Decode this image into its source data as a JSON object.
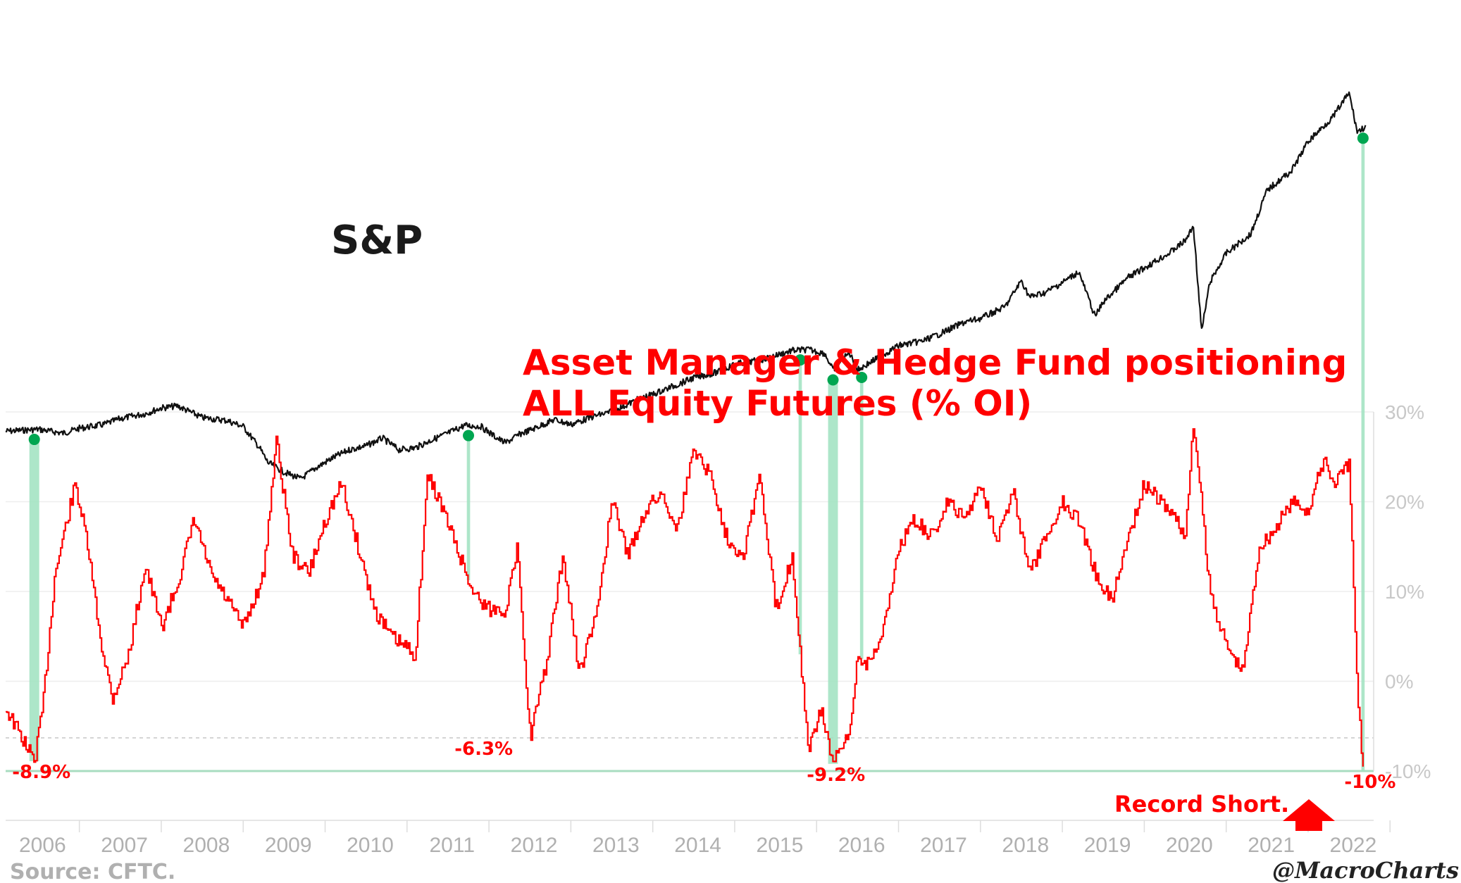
{
  "chart_data": {
    "type": "line",
    "sp_label": "S&P",
    "title_lines": [
      "Asset Manager & Hedge Fund positioning",
      "ALL Equity Futures (% OI)"
    ],
    "x_ticks": [
      "2006",
      "2007",
      "2008",
      "2009",
      "2010",
      "2011",
      "2012",
      "2013",
      "2014",
      "2015",
      "2016",
      "2017",
      "2018",
      "2019",
      "2020",
      "2021",
      "2022"
    ],
    "x_range": [
      2005.6,
      2022.3
    ],
    "y_ticks": [
      "30%",
      "20%",
      "10%",
      "0%",
      "-10%"
    ],
    "y_tick_values": [
      30,
      20,
      10,
      0,
      -10
    ],
    "ylim": [
      -10,
      30
    ],
    "record_level": -6.3,
    "series": [
      {
        "name": "S&P",
        "axis": "index",
        "color": "#111111",
        "x": [
          2005.6,
          2006.0,
          2006.3,
          2006.5,
          2006.8,
          2007.0,
          2007.3,
          2007.5,
          2007.7,
          2008.0,
          2008.3,
          2008.5,
          2008.7,
          2008.8,
          2009.0,
          2009.2,
          2009.4,
          2009.6,
          2009.8,
          2010.0,
          2010.2,
          2010.4,
          2010.6,
          2010.8,
          2011.0,
          2011.2,
          2011.4,
          2011.6,
          2011.7,
          2011.9,
          2012.0,
          2012.3,
          2012.5,
          2012.8,
          2013.0,
          2013.3,
          2013.5,
          2013.8,
          2014.0,
          2014.3,
          2014.5,
          2014.8,
          2015.0,
          2015.2,
          2015.4,
          2015.6,
          2015.7,
          2015.9,
          2016.0,
          2016.1,
          2016.3,
          2016.5,
          2016.8,
          2017.0,
          2017.3,
          2017.5,
          2017.8,
          2018.0,
          2018.1,
          2018.3,
          2018.5,
          2018.7,
          2018.9,
          2019.0,
          2019.3,
          2019.5,
          2019.8,
          2020.0,
          2020.1,
          2020.2,
          2020.3,
          2020.5,
          2020.8,
          2021.0,
          2021.3,
          2021.5,
          2021.8,
          2022.0,
          2022.1,
          2022.2
        ],
        "values": [
          1270,
          1290,
          1250,
          1300,
          1340,
          1400,
          1450,
          1510,
          1530,
          1410,
          1380,
          1320,
          1100,
          950,
          850,
          780,
          900,
          1000,
          1080,
          1120,
          1200,
          1080,
          1100,
          1180,
          1250,
          1330,
          1320,
          1200,
          1150,
          1250,
          1280,
          1390,
          1340,
          1430,
          1470,
          1590,
          1650,
          1750,
          1820,
          1880,
          1960,
          2000,
          2050,
          2100,
          2110,
          2070,
          1900,
          2080,
          1900,
          1950,
          2050,
          2150,
          2200,
          2270,
          2390,
          2430,
          2550,
          2820,
          2650,
          2700,
          2800,
          2910,
          2450,
          2600,
          2850,
          2950,
          3100,
          3230,
          3380,
          2300,
          2800,
          3100,
          3300,
          3750,
          3950,
          4250,
          4500,
          4750,
          4350,
          4400
        ]
      },
      {
        "name": "Asset Manager & Hedge Fund positioning",
        "axis": "percent",
        "color": "#ff0000",
        "x": [
          2005.6,
          2005.95,
          2006.05,
          2006.2,
          2006.45,
          2006.6,
          2006.75,
          2006.9,
          2007.1,
          2007.3,
          2007.5,
          2007.7,
          2007.9,
          2008.1,
          2008.3,
          2008.5,
          2008.75,
          2008.9,
          2009.1,
          2009.3,
          2009.5,
          2009.7,
          2009.9,
          2010.1,
          2010.3,
          2010.6,
          2010.75,
          2010.9,
          2011.1,
          2011.3,
          2011.5,
          2011.7,
          2011.85,
          2012.0,
          2012.2,
          2012.4,
          2012.6,
          2012.8,
          2013.0,
          2013.2,
          2013.4,
          2013.6,
          2013.8,
          2014.0,
          2014.2,
          2014.4,
          2014.6,
          2014.8,
          2015.0,
          2015.2,
          2015.4,
          2015.55,
          2015.7,
          2015.9,
          2016.0,
          2016.1,
          2016.3,
          2016.5,
          2016.7,
          2016.9,
          2017.1,
          2017.3,
          2017.5,
          2017.7,
          2017.9,
          2018.1,
          2018.3,
          2018.5,
          2018.7,
          2018.9,
          2019.1,
          2019.3,
          2019.5,
          2019.7,
          2019.9,
          2020.0,
          2020.1,
          2020.3,
          2020.5,
          2020.7,
          2020.9,
          2021.1,
          2021.3,
          2021.5,
          2021.7,
          2021.8,
          2022.0,
          2022.1,
          2022.17
        ],
        "values": [
          -3,
          -8.9,
          -3,
          12,
          22,
          15,
          5,
          -2,
          3,
          13,
          6,
          11,
          18,
          12,
          9,
          6,
          12,
          27,
          14,
          12,
          18,
          22,
          15,
          8,
          5,
          3,
          23,
          20,
          15,
          10,
          8,
          8,
          15,
          -6.3,
          2,
          14,
          1,
          7,
          20,
          14,
          19,
          21,
          17,
          26,
          23,
          16,
          14,
          23,
          8,
          14,
          -8,
          -3,
          -9.2,
          -6,
          3,
          2,
          5,
          15,
          18,
          16,
          20,
          18,
          22,
          16,
          21,
          12,
          16,
          20,
          18,
          12,
          9,
          16,
          22,
          20,
          18,
          16,
          29,
          10,
          4,
          1,
          15,
          17,
          20,
          19,
          25,
          22,
          24,
          -1,
          -10
        ]
      }
    ],
    "trough_labels": [
      {
        "x": 2005.95,
        "y": -8.9,
        "label": "-8.9%"
      },
      {
        "x": 2011.35,
        "y": -6.3,
        "label": "-6.3%"
      },
      {
        "x": 2015.65,
        "y": -9.2,
        "label": "-9.2%"
      },
      {
        "x": 2022.17,
        "y": -10,
        "label": "-10%"
      }
    ],
    "markers": [
      {
        "x": 2005.95,
        "shade_width_years": 0.12
      },
      {
        "x": 2011.25,
        "shade_width_years": 0.04
      },
      {
        "x": 2015.3,
        "shade_width_years": 0.04
      },
      {
        "x": 2015.7,
        "shade_width_years": 0.12
      },
      {
        "x": 2016.05,
        "shade_width_years": 0.04
      },
      {
        "x": 2022.17,
        "shade_width_years": 0.04
      }
    ],
    "annotation": "Record Short.",
    "source": "Source: CFTC.",
    "credit": "@MacroCharts",
    "colors": {
      "sp": "#111111",
      "positioning": "#ff0000",
      "shade": "#9fe2c0",
      "marker": "#00a651",
      "title": "#ff0000"
    }
  }
}
